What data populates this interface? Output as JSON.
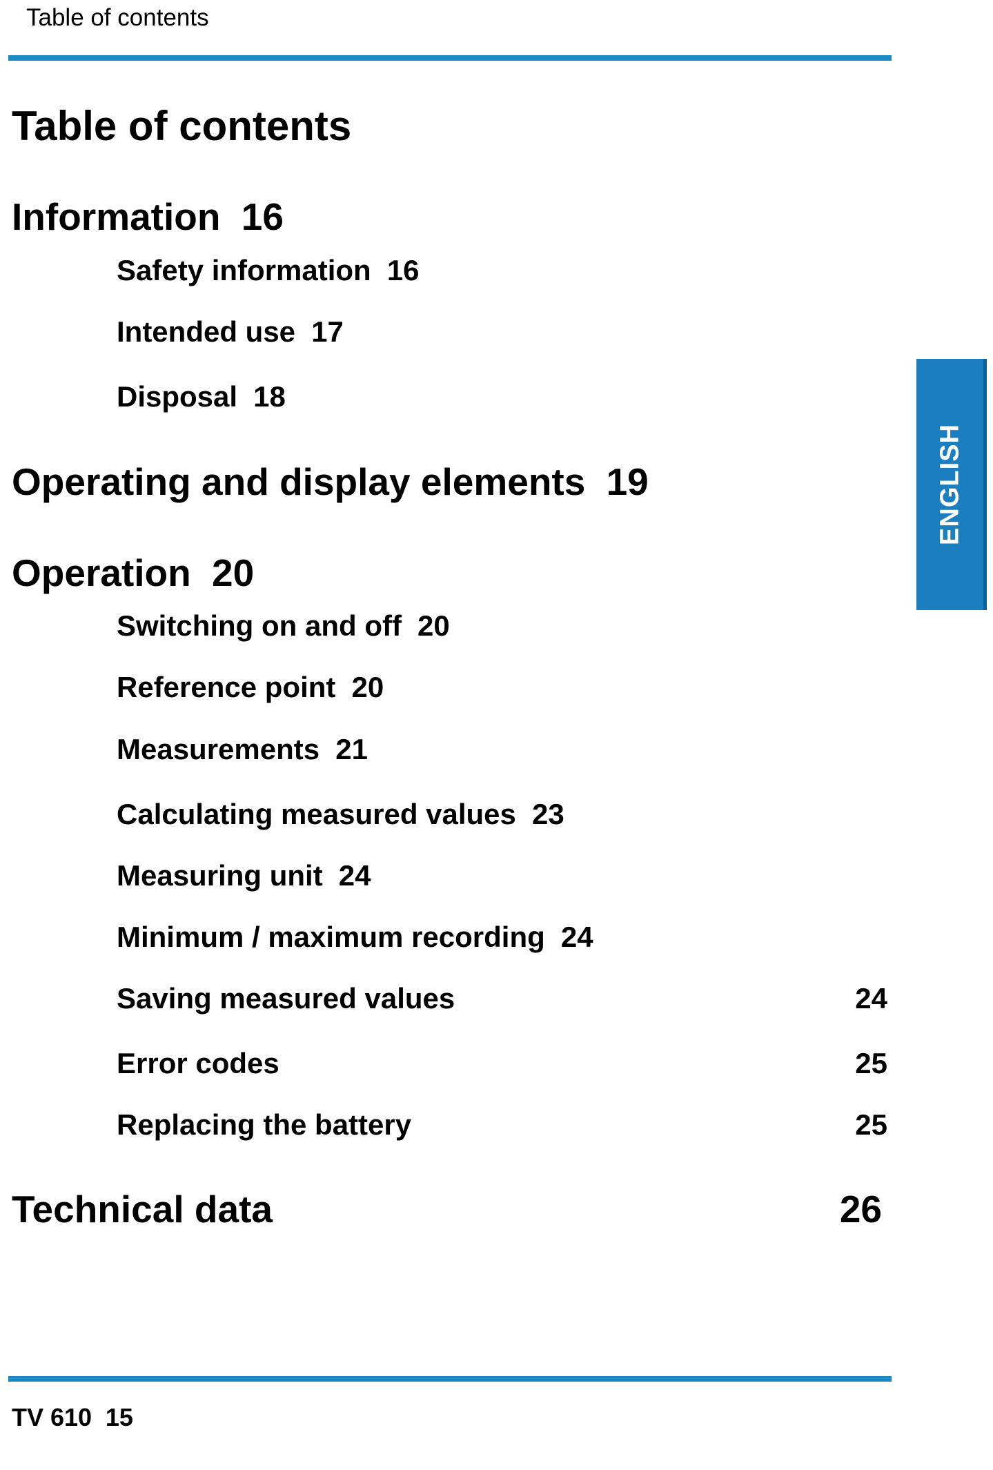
{
  "header": {
    "running_title": "Table of contents"
  },
  "page_title": "Table of contents",
  "toc": {
    "information": {
      "title": "Information",
      "page": "16"
    },
    "safety_information": {
      "title": "Safety information",
      "page": "16"
    },
    "intended_use": {
      "title": "Intended use",
      "page": "17"
    },
    "disposal": {
      "title": "Disposal",
      "page": "18"
    },
    "operating_display": {
      "title": "Operating and display elements",
      "page": "19"
    },
    "operation": {
      "title": "Operation",
      "page": "20"
    },
    "switching": {
      "title": "Switching on and off",
      "page": "20"
    },
    "reference_point": {
      "title": "Reference point",
      "page": "20"
    },
    "measurements": {
      "title": "Measurements",
      "page": "21"
    },
    "calculating": {
      "title": "Calculating measured values",
      "page": "23"
    },
    "measuring_unit": {
      "title": "Measuring unit",
      "page": "24"
    },
    "min_max": {
      "title": "Minimum / maximum recording",
      "page": "24"
    },
    "saving": {
      "title": "Saving measured values",
      "page": "24"
    },
    "error_codes": {
      "title": "Error codes",
      "page": "25"
    },
    "battery": {
      "title": "Replacing the battery",
      "page": "25"
    },
    "technical_data": {
      "title": "Technical data",
      "page": "26"
    }
  },
  "language_tab": {
    "label": "ENGLISH"
  },
  "footer": {
    "model": "TV 610",
    "page_number": "15"
  },
  "colors": {
    "accent_blue": "#1b8ac4",
    "tab_blue": "#1b7fbf",
    "text": "#000000"
  }
}
